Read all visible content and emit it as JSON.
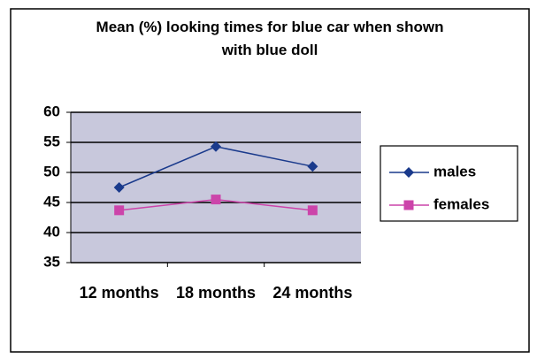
{
  "chart_data": {
    "type": "line",
    "title": "Mean (%) looking times for blue car when shown with blue doll",
    "categories": [
      "12 months",
      "18 months",
      "24 months"
    ],
    "series": [
      {
        "name": "males",
        "color": "#1a3a8c",
        "marker": "diamond",
        "values": [
          47.5,
          54.3,
          51
        ]
      },
      {
        "name": "females",
        "color": "#cc44aa",
        "marker": "square",
        "values": [
          43.7,
          45.5,
          43.7
        ]
      }
    ],
    "ylim": [
      35,
      60
    ],
    "yticks": [
      35,
      40,
      45,
      50,
      55,
      60
    ],
    "grid": true,
    "legend": "right"
  }
}
